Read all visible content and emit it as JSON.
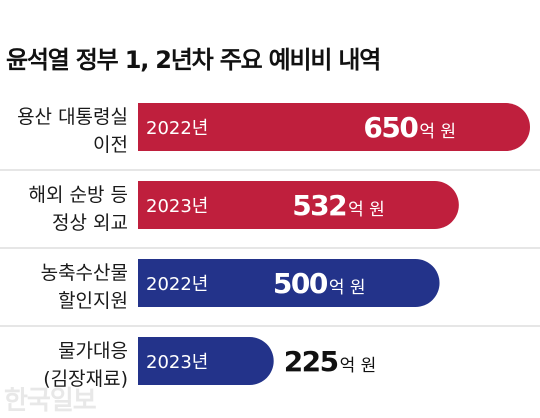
{
  "title": "윤석열 정부 1, 2년차 주요 예비비 내역",
  "watermark": "한국일보",
  "colors": {
    "red": "#bf1f3d",
    "blue": "#23338a",
    "divider": "#cccccc"
  },
  "chart_data": {
    "type": "bar",
    "orientation": "horizontal",
    "title": "윤석열 정부 1, 2년차 주요 예비비 내역",
    "unit": "억 원",
    "categories": [
      [
        "용산 대통령실",
        "이전"
      ],
      [
        "해외 순방 등",
        "정상 외교"
      ],
      [
        "농축수산물",
        "할인지원"
      ],
      [
        "물가대응",
        "(김장재료)"
      ]
    ],
    "years": [
      "2022년",
      "2023년",
      "2022년",
      "2023년"
    ],
    "values": [
      650,
      532,
      500,
      225
    ],
    "value_labels": [
      "650",
      "532",
      "500",
      "225"
    ],
    "bar_colors": [
      "red",
      "red",
      "blue",
      "blue"
    ],
    "xlim": [
      0,
      650
    ],
    "grid": false,
    "legend": "none"
  }
}
